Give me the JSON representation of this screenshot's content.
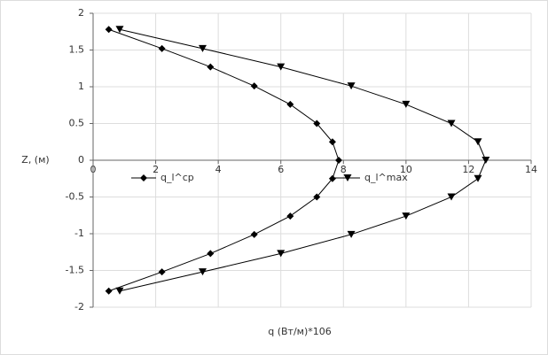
{
  "chart_data": {
    "type": "line",
    "xlabel": "q (Вт/м)*106",
    "ylabel": "Z, (м)",
    "xlim": [
      0,
      14
    ],
    "xticks": [
      0,
      2,
      4,
      6,
      8,
      10,
      12,
      14
    ],
    "ylim": [
      -2,
      2
    ],
    "yticks": [
      -2,
      -1.5,
      -1,
      -0.5,
      0,
      0.5,
      1,
      1.5,
      2
    ],
    "grid": true,
    "legend": "center",
    "series": [
      {
        "name": "q_l^cp",
        "color": "#000000",
        "marker": "diamond",
        "x": [
          0.5,
          2.2,
          3.75,
          5.15,
          6.3,
          7.15,
          7.65,
          7.85,
          7.65,
          7.15,
          6.3,
          5.15,
          3.75,
          2.2,
          0.5
        ],
        "values": [
          1.78,
          1.52,
          1.27,
          1.01,
          0.76,
          0.5,
          0.25,
          0,
          -0.25,
          -0.5,
          -0.76,
          -1.01,
          -1.27,
          -1.52,
          -1.78
        ]
      },
      {
        "name": "q_l^max",
        "color": "#000000",
        "marker": "triangle-down",
        "x": [
          0.85,
          3.5,
          6.0,
          8.25,
          10.0,
          11.45,
          12.3,
          12.55,
          12.3,
          11.45,
          10.0,
          8.25,
          6.0,
          3.5,
          0.85
        ],
        "values": [
          1.78,
          1.52,
          1.27,
          1.01,
          0.76,
          0.5,
          0.25,
          0,
          -0.25,
          -0.5,
          -0.76,
          -1.01,
          -1.27,
          -1.52,
          -1.78
        ]
      }
    ]
  }
}
